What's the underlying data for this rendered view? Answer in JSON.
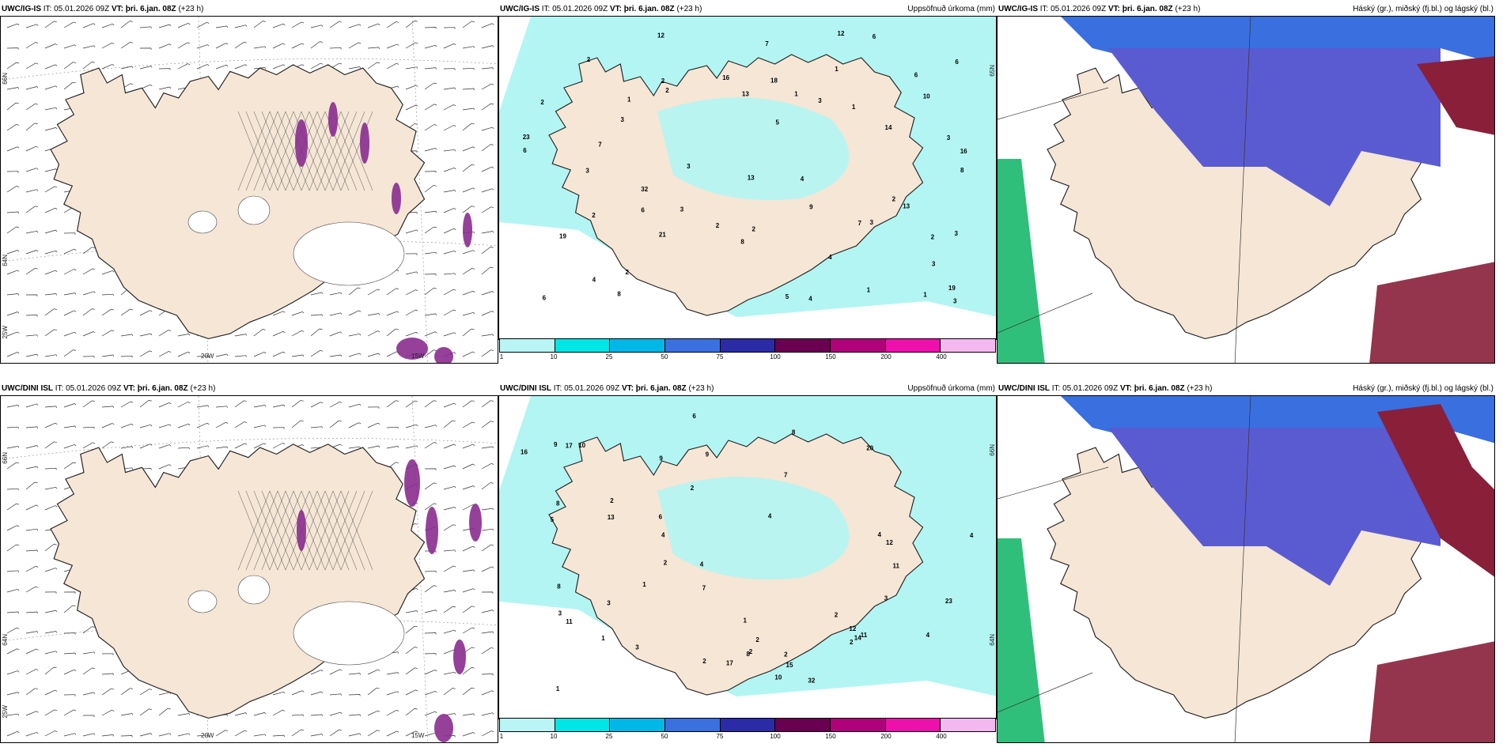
{
  "panels": [
    {
      "id": "tl",
      "source": "UWC/IG-IS",
      "it_label": "IT:",
      "it": "05.01.2026 09Z",
      "vt_label": "VT:",
      "vt": "þri. 6.jan. 08Z",
      "lead": "(+23 h)",
      "subtitle": "",
      "type": "wind"
    },
    {
      "id": "tm",
      "source": "UWC/IG-IS",
      "it_label": "IT:",
      "it": "05.01.2026 09Z",
      "vt_label": "VT:",
      "vt": "þri. 6.jan. 08Z",
      "lead": "(+23 h)",
      "subtitle": "Uppsöfnuð úrkoma (mm)",
      "type": "precip"
    },
    {
      "id": "tr",
      "source": "UWC/IG-IS",
      "it_label": "IT:",
      "it": "05.01.2026 09Z",
      "vt_label": "VT:",
      "vt": "þri. 6.jan. 08Z",
      "lead": "(+23 h)",
      "subtitle": "Háský (gr.), miðský (fj.bl.) og lágský (bl.)",
      "type": "cloud"
    },
    {
      "id": "bl",
      "source": "UWC/DINI ISL",
      "it_label": "IT:",
      "it": "05.01.2026 09Z",
      "vt_label": "VT:",
      "vt": "þri. 6.jan. 08Z",
      "lead": "(+23 h)",
      "subtitle": "",
      "type": "wind"
    },
    {
      "id": "bm",
      "source": "UWC/DINI ISL",
      "it_label": "IT:",
      "it": "05.01.2026 09Z",
      "vt_label": "VT:",
      "vt": "þri. 6.jan. 08Z",
      "lead": "(+23 h)",
      "subtitle": "Uppsöfnuð úrkoma (mm)",
      "type": "precip"
    },
    {
      "id": "br",
      "source": "UWC/DINI ISL",
      "it_label": "IT:",
      "it": "05.01.2026 09Z",
      "vt_label": "VT:",
      "vt": "þri. 6.jan. 08Z",
      "lead": "(+23 h)",
      "subtitle": "Háský (gr.), miðský (fj.bl.) og lágský (bl.)",
      "type": "cloud"
    }
  ],
  "axis_labels": {
    "lat_66": "66N",
    "lat_64": "64N",
    "lon_20": "20W",
    "lon_15": "15W",
    "lon_25": "25W",
    "lat_65": "65N"
  },
  "colorbar": {
    "labels": [
      "1",
      "10",
      "25",
      "50",
      "75",
      "100",
      "150",
      "200",
      "400"
    ],
    "colors": [
      "#b9f5f5",
      "#00e5e5",
      "#00b8e8",
      "#3a70e0",
      "#2b2ba8",
      "#6a0050",
      "#b0007a",
      "#ee10aa",
      "#f4b8f0"
    ]
  },
  "precip_top": [
    "2",
    "3",
    "3",
    "16",
    "3",
    "3",
    "3",
    "12",
    "2",
    "6",
    "3",
    "13",
    "14",
    "21",
    "19",
    "13",
    "32",
    "23",
    "12",
    "16",
    "19",
    "18",
    "4",
    "2",
    "5",
    "6",
    "6",
    "4",
    "5",
    "6",
    "8",
    "3",
    "3",
    "7",
    "7",
    "6",
    "8",
    "9",
    "10",
    "2",
    "4",
    "2",
    "2",
    "2",
    "3",
    "2",
    "1",
    "1",
    "2",
    "2",
    "1",
    "1",
    "1",
    "1",
    "6",
    "8",
    "13",
    "7",
    "3",
    "4"
  ],
  "precip_bottom": [
    "2",
    "2",
    "4",
    "16",
    "4",
    "11",
    "2",
    "8",
    "4",
    "2",
    "3",
    "4",
    "17",
    "32",
    "20",
    "15",
    "12",
    "14",
    "23",
    "12",
    "10",
    "11",
    "13",
    "4",
    "2",
    "3",
    "8",
    "10",
    "9",
    "6",
    "9",
    "2",
    "3",
    "1",
    "2",
    "2",
    "17",
    "11",
    "4",
    "1",
    "1",
    "1",
    "2",
    "3",
    "5",
    "7",
    "8",
    "7",
    "6",
    "9",
    "8"
  ],
  "colors": {
    "land": "#f5e6d6",
    "precip_fill": "#b3f5f3",
    "cloud_high": "#5b5bd1",
    "cloud_mid": "#3a6fe0",
    "cloud_low": "#8a1f3a",
    "ocean_green": "#2fbf7a",
    "snow": "#ffffff",
    "precip_purple": "#8a2c8f"
  }
}
